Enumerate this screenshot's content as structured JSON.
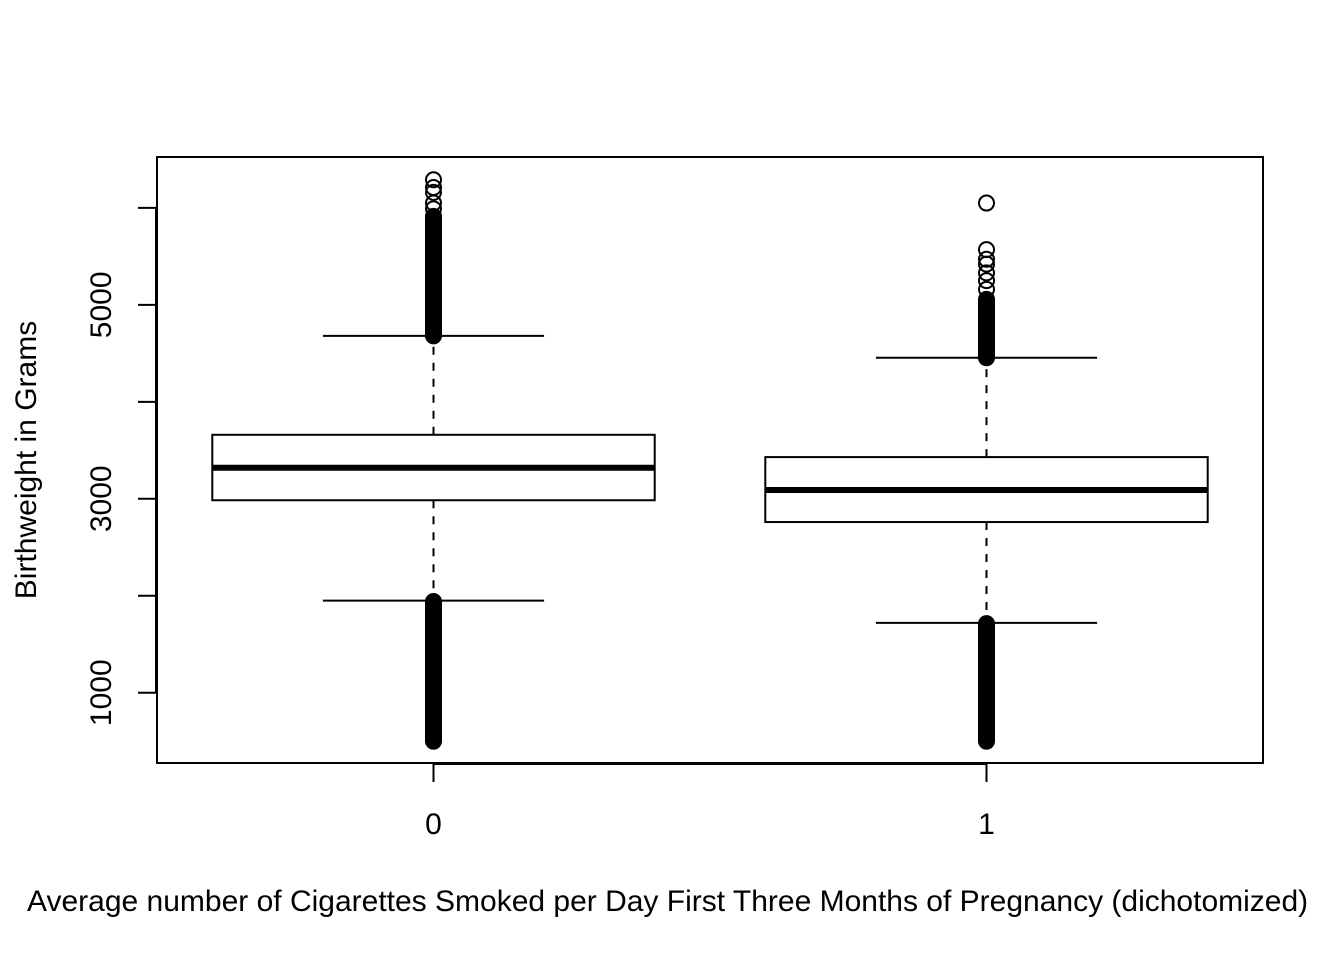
{
  "chart_data": {
    "type": "boxplot",
    "title": "",
    "xlabel": "Average number of Cigarettes Smoked per Day First Three Months of Pregnancy (dichotomized)",
    "ylabel": "Birthweight in Grams",
    "ylim": [
      275,
      6525
    ],
    "yticks": [
      1000,
      3000,
      5000
    ],
    "yticks_unlabeled": [
      2000,
      4000,
      6000
    ],
    "categories": [
      "0",
      "1"
    ],
    "boxes": [
      {
        "category": "0",
        "whisker_low": 1950,
        "q1": 2985,
        "median": 3320,
        "q3": 3660,
        "whisker_high": 4680,
        "outliers_low_range": [
          500,
          1950
        ],
        "outliers_high_range": [
          4680,
          5920
        ],
        "outliers_high_extra": [
          5990,
          6050,
          6160,
          6210,
          6290
        ]
      },
      {
        "category": "1",
        "whisker_low": 1720,
        "q1": 2760,
        "median": 3090,
        "q3": 3430,
        "whisker_high": 4455,
        "outliers_low_range": [
          500,
          1720
        ],
        "outliers_high_range": [
          4455,
          5060
        ],
        "outliers_high_extra": [
          5160,
          5250,
          5330,
          5420,
          5470,
          5570,
          6050
        ]
      }
    ],
    "grid": false
  }
}
